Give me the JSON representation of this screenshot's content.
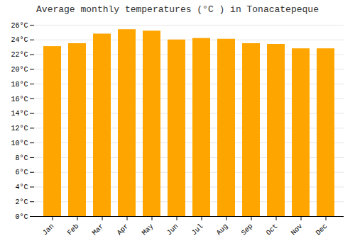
{
  "chart_data": {
    "type": "bar",
    "title": "Average monthly temperatures (°C ) in Tonacatepeque",
    "categories": [
      "Jan",
      "Feb",
      "Mar",
      "Apr",
      "May",
      "Jun",
      "Jul",
      "Aug",
      "Sep",
      "Oct",
      "Nov",
      "Dec"
    ],
    "values": [
      23.1,
      23.5,
      24.8,
      25.4,
      25.2,
      24.0,
      24.2,
      24.1,
      23.5,
      23.4,
      22.8,
      22.8
    ],
    "color": "#FFA500",
    "ylim": [
      0,
      26
    ],
    "yticks": [
      {
        "value": 0,
        "label": "0°C"
      },
      {
        "value": 2,
        "label": "2°C"
      },
      {
        "value": 4,
        "label": "4°C"
      },
      {
        "value": 6,
        "label": "6°C"
      },
      {
        "value": 8,
        "label": "8°C"
      },
      {
        "value": 10,
        "label": "10°C"
      },
      {
        "value": 12,
        "label": "12°C"
      },
      {
        "value": 14,
        "label": "14°C"
      },
      {
        "value": 16,
        "label": "16°C"
      },
      {
        "value": 18,
        "label": "18°C"
      },
      {
        "value": 20,
        "label": "20°C"
      },
      {
        "value": 22,
        "label": "22°C"
      },
      {
        "value": 24,
        "label": "24°C"
      },
      {
        "value": 26,
        "label": "26°C"
      }
    ],
    "grid": true
  }
}
